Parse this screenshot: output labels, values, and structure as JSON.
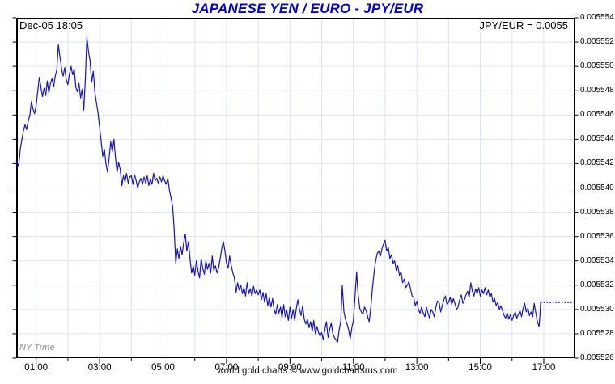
{
  "title": "JAPANESE YEN / EURO - JPY/EUR",
  "annotations": {
    "timestamp": "Dec-05  18:05",
    "quote": "JPY/EUR = 0.0055",
    "timezone_note": "NY Time"
  },
  "footer": "world gold charts © www.goldchartsrus.com",
  "colors": {
    "title": "#0000dd",
    "line": "#1313c4",
    "grid": "#dce4f5",
    "axis": "#000000",
    "muted": "#a9a9a9"
  },
  "chart_data": {
    "type": "line",
    "title": "JAPANESE YEN / EURO - JPY/EUR",
    "pair": "JPY/EUR",
    "last_price": 0.0055306,
    "x_unit": "time of day (NY Time), hours",
    "xlim": [
      0.37,
      17.97
    ],
    "ylim": [
      0.005526,
      0.005554
    ],
    "grid": true,
    "legend_position": "none",
    "y_ticks": [
      0.005554,
      0.005552,
      0.00555,
      0.005548,
      0.005546,
      0.005544,
      0.005542,
      0.00554,
      0.005538,
      0.005536,
      0.005534,
      0.005532,
      0.00553,
      0.005528,
      0.005526
    ],
    "y_tick_labels": [
      "0.005554",
      "0.005552",
      "0.005550",
      "0.005548",
      "0.005546",
      "0.005544",
      "0.005542",
      "0.005540",
      "0.005538",
      "0.005536",
      "0.005534",
      "0.005532",
      "0.005530",
      "0.005528",
      "0.005526"
    ],
    "x_ticks_labeled": [
      {
        "hour": 1,
        "label": "01:00"
      },
      {
        "hour": 3,
        "label": "03:00"
      },
      {
        "hour": 5,
        "label": "05:00"
      },
      {
        "hour": 7,
        "label": "07:00"
      },
      {
        "hour": 9,
        "label": "09:00"
      },
      {
        "hour": 11,
        "label": "11:00"
      },
      {
        "hour": 13,
        "label": "13:00"
      },
      {
        "hour": 15,
        "label": "15:00"
      },
      {
        "hour": 17,
        "label": "17:00"
      }
    ],
    "x_ticks_minor": [
      2,
      4,
      6,
      8,
      10,
      12,
      14,
      16
    ],
    "grid_hours": [
      1,
      2,
      3,
      4,
      5,
      6,
      7,
      8,
      9,
      10,
      11,
      12,
      13,
      14,
      15,
      16,
      17
    ],
    "points": [
      [
        0.37,
        0.0055422
      ],
      [
        0.45,
        0.0055418
      ],
      [
        0.5,
        0.0055432
      ],
      [
        0.55,
        0.005544
      ],
      [
        0.6,
        0.0055447
      ],
      [
        0.65,
        0.0055452
      ],
      [
        0.7,
        0.0055448
      ],
      [
        0.75,
        0.0055455
      ],
      [
        0.8,
        0.005546
      ],
      [
        0.85,
        0.0055471
      ],
      [
        0.9,
        0.0055465
      ],
      [
        0.95,
        0.0055461
      ],
      [
        1.0,
        0.0055468
      ],
      [
        1.05,
        0.005548
      ],
      [
        1.1,
        0.0055491
      ],
      [
        1.15,
        0.0055483
      ],
      [
        1.2,
        0.0055475
      ],
      [
        1.25,
        0.0055482
      ],
      [
        1.3,
        0.0055476
      ],
      [
        1.35,
        0.0055488
      ],
      [
        1.4,
        0.0055478
      ],
      [
        1.45,
        0.0055486
      ],
      [
        1.5,
        0.005549
      ],
      [
        1.55,
        0.0055483
      ],
      [
        1.6,
        0.0055492
      ],
      [
        1.65,
        0.0055497
      ],
      [
        1.7,
        0.0055518
      ],
      [
        1.75,
        0.0055508
      ],
      [
        1.8,
        0.0055498
      ],
      [
        1.85,
        0.0055492
      ],
      [
        1.9,
        0.0055499
      ],
      [
        1.95,
        0.0055489
      ],
      [
        2.0,
        0.0055485
      ],
      [
        2.05,
        0.0055494
      ],
      [
        2.1,
        0.00555
      ],
      [
        2.15,
        0.0055493
      ],
      [
        2.2,
        0.0055498
      ],
      [
        2.25,
        0.0055483
      ],
      [
        2.3,
        0.0055479
      ],
      [
        2.35,
        0.0055486
      ],
      [
        2.4,
        0.0055474
      ],
      [
        2.45,
        0.0055481
      ],
      [
        2.5,
        0.0055464
      ],
      [
        2.55,
        0.005549
      ],
      [
        2.6,
        0.0055524
      ],
      [
        2.65,
        0.0055512
      ],
      [
        2.7,
        0.0055505
      ],
      [
        2.75,
        0.0055487
      ],
      [
        2.8,
        0.0055496
      ],
      [
        2.85,
        0.0055479
      ],
      [
        2.9,
        0.005547
      ],
      [
        2.95,
        0.0055462
      ],
      [
        3.0,
        0.005545
      ],
      [
        3.05,
        0.0055438
      ],
      [
        3.1,
        0.0055426
      ],
      [
        3.15,
        0.0055432
      ],
      [
        3.2,
        0.005542
      ],
      [
        3.25,
        0.0055413
      ],
      [
        3.3,
        0.0055425
      ],
      [
        3.35,
        0.0055438
      ],
      [
        3.4,
        0.005543
      ],
      [
        3.45,
        0.005544
      ],
      [
        3.5,
        0.0055425
      ],
      [
        3.55,
        0.0055413
      ],
      [
        3.6,
        0.0055421
      ],
      [
        3.65,
        0.0055415
      ],
      [
        3.7,
        0.0055402
      ],
      [
        3.75,
        0.005541
      ],
      [
        3.8,
        0.0055405
      ],
      [
        3.85,
        0.0055412
      ],
      [
        3.9,
        0.0055404
      ],
      [
        3.95,
        0.0055409
      ],
      [
        4.0,
        0.005541
      ],
      [
        4.05,
        0.0055403
      ],
      [
        4.1,
        0.0055411
      ],
      [
        4.15,
        0.0055406
      ],
      [
        4.2,
        0.00554
      ],
      [
        4.25,
        0.0055405
      ],
      [
        4.3,
        0.0055408
      ],
      [
        4.35,
        0.0055403
      ],
      [
        4.4,
        0.0055409
      ],
      [
        4.45,
        0.0055404
      ],
      [
        4.5,
        0.005541
      ],
      [
        4.55,
        0.0055402
      ],
      [
        4.6,
        0.0055407
      ],
      [
        4.65,
        0.0055403
      ],
      [
        4.7,
        0.0055412
      ],
      [
        4.75,
        0.0055406
      ],
      [
        4.8,
        0.0055408
      ],
      [
        4.85,
        0.0055404
      ],
      [
        4.9,
        0.0055409
      ],
      [
        4.95,
        0.0055405
      ],
      [
        5.0,
        0.005541
      ],
      [
        5.05,
        0.0055406
      ],
      [
        5.1,
        0.0055403
      ],
      [
        5.15,
        0.0055408
      ],
      [
        5.2,
        0.0055398
      ],
      [
        5.25,
        0.0055392
      ],
      [
        5.3,
        0.0055385
      ],
      [
        5.35,
        0.0055366
      ],
      [
        5.4,
        0.0055338
      ],
      [
        5.45,
        0.005535
      ],
      [
        5.5,
        0.0055342
      ],
      [
        5.55,
        0.0055352
      ],
      [
        5.6,
        0.0055345
      ],
      [
        5.65,
        0.0055355
      ],
      [
        5.7,
        0.0055362
      ],
      [
        5.75,
        0.0055348
      ],
      [
        5.8,
        0.0055356
      ],
      [
        5.85,
        0.0055342
      ],
      [
        5.9,
        0.005533
      ],
      [
        5.95,
        0.0055336
      ],
      [
        6.0,
        0.0055328
      ],
      [
        6.05,
        0.005534
      ],
      [
        6.1,
        0.0055332
      ],
      [
        6.15,
        0.0055326
      ],
      [
        6.2,
        0.0055342
      ],
      [
        6.25,
        0.0055334
      ],
      [
        6.3,
        0.0055329
      ],
      [
        6.35,
        0.005534
      ],
      [
        6.4,
        0.0055333
      ],
      [
        6.45,
        0.0055338
      ],
      [
        6.5,
        0.005533
      ],
      [
        6.55,
        0.0055344
      ],
      [
        6.6,
        0.0055332
      ],
      [
        6.65,
        0.0055336
      ],
      [
        6.7,
        0.005533
      ],
      [
        6.75,
        0.0055334
      ],
      [
        6.8,
        0.0055342
      ],
      [
        6.85,
        0.005535
      ],
      [
        6.9,
        0.0055356
      ],
      [
        6.95,
        0.0055348
      ],
      [
        7.0,
        0.0055338
      ],
      [
        7.05,
        0.0055334
      ],
      [
        7.1,
        0.0055344
      ],
      [
        7.15,
        0.0055336
      ],
      [
        7.2,
        0.005533
      ],
      [
        7.25,
        0.0055326
      ],
      [
        7.3,
        0.0055314
      ],
      [
        7.35,
        0.0055322
      ],
      [
        7.4,
        0.0055316
      ],
      [
        7.45,
        0.005532
      ],
      [
        7.5,
        0.0055313
      ],
      [
        7.55,
        0.0055318
      ],
      [
        7.6,
        0.0055311
      ],
      [
        7.65,
        0.0055322
      ],
      [
        7.7,
        0.0055313
      ],
      [
        7.75,
        0.0055317
      ],
      [
        7.8,
        0.0055311
      ],
      [
        7.85,
        0.0055319
      ],
      [
        7.9,
        0.0055313
      ],
      [
        7.95,
        0.0055316
      ],
      [
        8.0,
        0.0055312
      ],
      [
        8.05,
        0.0055316
      ],
      [
        8.1,
        0.0055308
      ],
      [
        8.15,
        0.0055314
      ],
      [
        8.2,
        0.0055306
      ],
      [
        8.25,
        0.0055313
      ],
      [
        8.3,
        0.0055303
      ],
      [
        8.35,
        0.005531
      ],
      [
        8.4,
        0.0055302
      ],
      [
        8.45,
        0.0055309
      ],
      [
        8.5,
        0.00553
      ],
      [
        8.55,
        0.0055296
      ],
      [
        8.6,
        0.0055304
      ],
      [
        8.65,
        0.0055297
      ],
      [
        8.7,
        0.0055302
      ],
      [
        8.75,
        0.0055293
      ],
      [
        8.8,
        0.0055304
      ],
      [
        8.85,
        0.0055294
      ],
      [
        8.9,
        0.0055299
      ],
      [
        8.95,
        0.0055291
      ],
      [
        9.0,
        0.0055302
      ],
      [
        9.05,
        0.0055293
      ],
      [
        9.1,
        0.00553
      ],
      [
        9.15,
        0.0055291
      ],
      [
        9.2,
        0.0055301
      ],
      [
        9.25,
        0.0055308
      ],
      [
        9.3,
        0.00553
      ],
      [
        9.35,
        0.0055295
      ],
      [
        9.4,
        0.0055303
      ],
      [
        9.45,
        0.0055292
      ],
      [
        9.5,
        0.0055288
      ],
      [
        9.55,
        0.0055292
      ],
      [
        9.6,
        0.0055285
      ],
      [
        9.65,
        0.005529
      ],
      [
        9.7,
        0.0055282
      ],
      [
        9.75,
        0.0055291
      ],
      [
        9.8,
        0.005528
      ],
      [
        9.85,
        0.0055286
      ],
      [
        9.9,
        0.0055281
      ],
      [
        9.95,
        0.0055278
      ],
      [
        10.0,
        0.0055281
      ],
      [
        10.05,
        0.0055275
      ],
      [
        10.1,
        0.0055284
      ],
      [
        10.15,
        0.005529
      ],
      [
        10.2,
        0.0055277
      ],
      [
        10.25,
        0.0055283
      ],
      [
        10.3,
        0.0055289
      ],
      [
        10.35,
        0.005528
      ],
      [
        10.4,
        0.0055277
      ],
      [
        10.45,
        0.0055275
      ],
      [
        10.5,
        0.0055273
      ],
      [
        10.55,
        0.0055283
      ],
      [
        10.6,
        0.005529
      ],
      [
        10.65,
        0.005532
      ],
      [
        10.7,
        0.0055298
      ],
      [
        10.75,
        0.0055292
      ],
      [
        10.8,
        0.0055288
      ],
      [
        10.85,
        0.0055283
      ],
      [
        10.9,
        0.0055276
      ],
      [
        10.95,
        0.0055285
      ],
      [
        11.0,
        0.0055291
      ],
      [
        11.05,
        0.005531
      ],
      [
        11.1,
        0.0055331
      ],
      [
        11.15,
        0.0055312
      ],
      [
        11.2,
        0.0055301
      ],
      [
        11.25,
        0.0055298
      ],
      [
        11.3,
        0.0055296
      ],
      [
        11.35,
        0.0055302
      ],
      [
        11.4,
        0.0055299
      ],
      [
        11.45,
        0.0055294
      ],
      [
        11.5,
        0.005529
      ],
      [
        11.55,
        0.0055302
      ],
      [
        11.6,
        0.0055318
      ],
      [
        11.65,
        0.005533
      ],
      [
        11.7,
        0.005534
      ],
      [
        11.75,
        0.0055346
      ],
      [
        11.8,
        0.0055348
      ],
      [
        11.85,
        0.0055344
      ],
      [
        11.9,
        0.005535
      ],
      [
        11.95,
        0.0055354
      ],
      [
        12.0,
        0.0055357
      ],
      [
        12.05,
        0.0055348
      ],
      [
        12.1,
        0.0055351
      ],
      [
        12.15,
        0.0055342
      ],
      [
        12.2,
        0.0055345
      ],
      [
        12.25,
        0.0055338
      ],
      [
        12.3,
        0.005534
      ],
      [
        12.35,
        0.0055332
      ],
      [
        12.4,
        0.0055336
      ],
      [
        12.45,
        0.0055328
      ],
      [
        12.5,
        0.0055331
      ],
      [
        12.55,
        0.0055322
      ],
      [
        12.6,
        0.0055325
      ],
      [
        12.65,
        0.0055318
      ],
      [
        12.7,
        0.005532
      ],
      [
        12.75,
        0.0055323
      ],
      [
        12.8,
        0.0055317
      ],
      [
        12.85,
        0.0055311
      ],
      [
        12.9,
        0.005531
      ],
      [
        12.95,
        0.0055303
      ],
      [
        13.0,
        0.0055307
      ],
      [
        13.05,
        0.00553
      ],
      [
        13.1,
        0.0055297
      ],
      [
        13.15,
        0.0055302
      ],
      [
        13.2,
        0.0055297
      ],
      [
        13.25,
        0.0055294
      ],
      [
        13.3,
        0.0055302
      ],
      [
        13.35,
        0.0055297
      ],
      [
        13.4,
        0.0055293
      ],
      [
        13.45,
        0.00553
      ],
      [
        13.5,
        0.0055298
      ],
      [
        13.55,
        0.0055294
      ],
      [
        13.6,
        0.0055302
      ],
      [
        13.65,
        0.0055307
      ],
      [
        13.7,
        0.0055306
      ],
      [
        13.75,
        0.0055298
      ],
      [
        13.8,
        0.0055303
      ],
      [
        13.85,
        0.0055308
      ],
      [
        13.9,
        0.0055311
      ],
      [
        13.95,
        0.0055304
      ],
      [
        14.0,
        0.0055306
      ],
      [
        14.05,
        0.005531
      ],
      [
        14.1,
        0.0055304
      ],
      [
        14.15,
        0.0055309
      ],
      [
        14.2,
        0.0055305
      ],
      [
        14.25,
        0.00553
      ],
      [
        14.3,
        0.0055302
      ],
      [
        14.35,
        0.0055308
      ],
      [
        14.4,
        0.0055312
      ],
      [
        14.45,
        0.0055305
      ],
      [
        14.5,
        0.0055308
      ],
      [
        14.55,
        0.0055312
      ],
      [
        14.6,
        0.0055315
      ],
      [
        14.65,
        0.005531
      ],
      [
        14.7,
        0.0055322
      ],
      [
        14.75,
        0.0055315
      ],
      [
        14.8,
        0.0055311
      ],
      [
        14.85,
        0.0055317
      ],
      [
        14.9,
        0.0055313
      ],
      [
        14.95,
        0.0055318
      ],
      [
        15.0,
        0.0055311
      ],
      [
        15.05,
        0.0055316
      ],
      [
        15.1,
        0.0055313
      ],
      [
        15.15,
        0.0055318
      ],
      [
        15.2,
        0.0055312
      ],
      [
        15.25,
        0.0055316
      ],
      [
        15.3,
        0.005531
      ],
      [
        15.35,
        0.0055313
      ],
      [
        15.4,
        0.0055306
      ],
      [
        15.45,
        0.0055309
      ],
      [
        15.5,
        0.0055303
      ],
      [
        15.55,
        0.0055306
      ],
      [
        15.6,
        0.00553
      ],
      [
        15.65,
        0.0055303
      ],
      [
        15.7,
        0.0055299
      ],
      [
        15.75,
        0.0055295
      ],
      [
        15.8,
        0.0055293
      ],
      [
        15.85,
        0.0055297
      ],
      [
        15.9,
        0.0055292
      ],
      [
        15.95,
        0.0055296
      ],
      [
        16.0,
        0.0055291
      ],
      [
        16.05,
        0.0055295
      ],
      [
        16.1,
        0.0055298
      ],
      [
        16.15,
        0.0055293
      ],
      [
        16.2,
        0.0055296
      ],
      [
        16.25,
        0.0055299
      ],
      [
        16.3,
        0.0055294
      ],
      [
        16.35,
        0.0055301
      ],
      [
        16.4,
        0.0055305
      ],
      [
        16.45,
        0.0055298
      ],
      [
        16.5,
        0.0055301
      ],
      [
        16.55,
        0.0055295
      ],
      [
        16.6,
        0.0055298
      ],
      [
        16.65,
        0.0055294
      ],
      [
        16.7,
        0.0055305
      ],
      [
        16.75,
        0.0055297
      ],
      [
        16.8,
        0.005529
      ],
      [
        16.85,
        0.0055286
      ],
      [
        16.88,
        0.0055296
      ],
      [
        16.9,
        0.0055306
      ]
    ],
    "flat_tail": {
      "from_hour": 16.9,
      "to_hour": 17.97,
      "value": 0.0055306,
      "style": "dotted"
    }
  }
}
